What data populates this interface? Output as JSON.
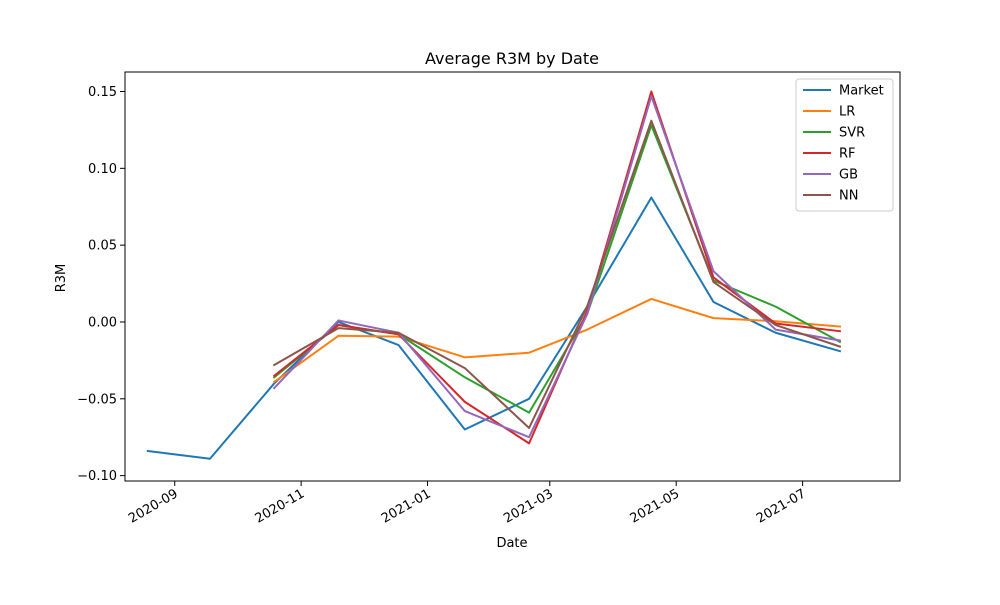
{
  "chart_data": {
    "type": "line",
    "title": "Average R3M by Date",
    "xlabel": "Date",
    "ylabel": "R3M",
    "x_axis_type": "date",
    "xlim": [
      "2020-08-08",
      "2021-08-17"
    ],
    "ylim": [
      -0.1035,
      0.1627
    ],
    "x_ticks": [
      {
        "date": "2020-09-01",
        "label": "2020-09"
      },
      {
        "date": "2020-11-01",
        "label": "2020-11"
      },
      {
        "date": "2021-01-01",
        "label": "2021-01"
      },
      {
        "date": "2021-03-01",
        "label": "2021-03"
      },
      {
        "date": "2021-05-01",
        "label": "2021-05"
      },
      {
        "date": "2021-07-01",
        "label": "2021-07"
      }
    ],
    "y_ticks": [
      {
        "value": -0.1,
        "label": "−0.10"
      },
      {
        "value": -0.05,
        "label": "−0.05"
      },
      {
        "value": 0.0,
        "label": "0.00"
      },
      {
        "value": 0.05,
        "label": "0.05"
      },
      {
        "value": 0.1,
        "label": "0.10"
      },
      {
        "value": 0.15,
        "label": "0.15"
      }
    ],
    "grid": false,
    "legend_position": "top-right",
    "series": [
      {
        "name": "Market",
        "color": "#1f77b4",
        "points": [
          {
            "x": "2020-08-19",
            "y": -0.084
          },
          {
            "x": "2020-09-18",
            "y": -0.089
          },
          {
            "x": "2020-10-19",
            "y": -0.04
          },
          {
            "x": "2020-11-19",
            "y": 0.0
          },
          {
            "x": "2020-12-18",
            "y": -0.015
          },
          {
            "x": "2021-01-19",
            "y": -0.07
          },
          {
            "x": "2021-02-19",
            "y": -0.05
          },
          {
            "x": "2021-03-19",
            "y": 0.01
          },
          {
            "x": "2021-04-19",
            "y": 0.081
          },
          {
            "x": "2021-05-19",
            "y": 0.013
          },
          {
            "x": "2021-06-18",
            "y": -0.007
          },
          {
            "x": "2021-07-19",
            "y": -0.019
          }
        ]
      },
      {
        "name": "LR",
        "color": "#ff7f0e",
        "points": [
          {
            "x": "2020-10-19",
            "y": -0.039
          },
          {
            "x": "2020-11-19",
            "y": -0.009
          },
          {
            "x": "2020-12-18",
            "y": -0.0095
          },
          {
            "x": "2021-01-19",
            "y": -0.023
          },
          {
            "x": "2021-02-19",
            "y": -0.02
          },
          {
            "x": "2021-03-19",
            "y": -0.005
          },
          {
            "x": "2021-04-19",
            "y": 0.015
          },
          {
            "x": "2021-05-19",
            "y": 0.0025
          },
          {
            "x": "2021-06-18",
            "y": 0.0005
          },
          {
            "x": "2021-07-19",
            "y": -0.003
          }
        ]
      },
      {
        "name": "SVR",
        "color": "#2ca02c",
        "points": [
          {
            "x": "2020-10-19",
            "y": -0.036
          },
          {
            "x": "2020-11-19",
            "y": -0.002
          },
          {
            "x": "2020-12-18",
            "y": -0.008
          },
          {
            "x": "2021-01-19",
            "y": -0.036
          },
          {
            "x": "2021-02-19",
            "y": -0.059
          },
          {
            "x": "2021-03-19",
            "y": 0.005
          },
          {
            "x": "2021-04-19",
            "y": 0.128
          },
          {
            "x": "2021-05-19",
            "y": 0.027
          },
          {
            "x": "2021-06-18",
            "y": 0.01
          },
          {
            "x": "2021-07-19",
            "y": -0.013
          }
        ]
      },
      {
        "name": "RF",
        "color": "#d62728",
        "points": [
          {
            "x": "2020-10-19",
            "y": -0.035
          },
          {
            "x": "2020-11-19",
            "y": -0.002
          },
          {
            "x": "2020-12-18",
            "y": -0.008
          },
          {
            "x": "2021-01-19",
            "y": -0.052
          },
          {
            "x": "2021-02-19",
            "y": -0.079
          },
          {
            "x": "2021-03-19",
            "y": 0.007
          },
          {
            "x": "2021-04-19",
            "y": 0.15
          },
          {
            "x": "2021-05-19",
            "y": 0.029
          },
          {
            "x": "2021-06-18",
            "y": -0.001
          },
          {
            "x": "2021-07-19",
            "y": -0.006
          }
        ]
      },
      {
        "name": "GB",
        "color": "#9467bd",
        "points": [
          {
            "x": "2020-10-19",
            "y": -0.043
          },
          {
            "x": "2020-11-19",
            "y": 0.001
          },
          {
            "x": "2020-12-18",
            "y": -0.007
          },
          {
            "x": "2021-01-19",
            "y": -0.058
          },
          {
            "x": "2021-02-19",
            "y": -0.075
          },
          {
            "x": "2021-03-19",
            "y": 0.005
          },
          {
            "x": "2021-04-19",
            "y": 0.147
          },
          {
            "x": "2021-05-19",
            "y": 0.033
          },
          {
            "x": "2021-06-18",
            "y": -0.005
          },
          {
            "x": "2021-07-19",
            "y": -0.012
          }
        ]
      },
      {
        "name": "NN",
        "color": "#8c564b",
        "points": [
          {
            "x": "2020-10-19",
            "y": -0.028
          },
          {
            "x": "2020-11-19",
            "y": -0.004
          },
          {
            "x": "2020-12-18",
            "y": -0.007
          },
          {
            "x": "2021-01-19",
            "y": -0.03
          },
          {
            "x": "2021-02-19",
            "y": -0.069
          },
          {
            "x": "2021-03-19",
            "y": 0.01
          },
          {
            "x": "2021-04-19",
            "y": 0.131
          },
          {
            "x": "2021-05-19",
            "y": 0.026
          },
          {
            "x": "2021-06-18",
            "y": -0.002
          },
          {
            "x": "2021-07-19",
            "y": -0.016
          }
        ]
      }
    ]
  }
}
